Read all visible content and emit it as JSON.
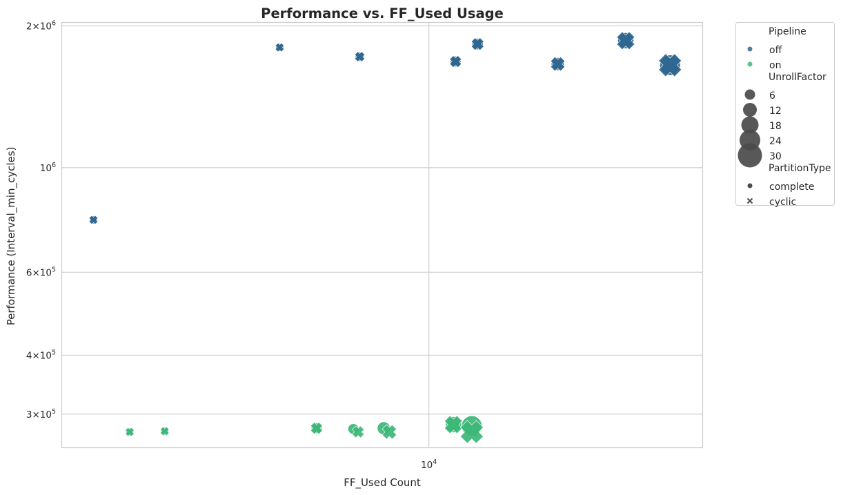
{
  "chart_data": {
    "type": "scatter",
    "title": "Performance vs. FF_Used Usage",
    "xlabel": "FF_Used Count",
    "ylabel": "Performance (Interval_min_cycles)",
    "xscale": "log",
    "yscale": "log",
    "xlim": [
      2100,
      32000
    ],
    "ylim": [
      255000,
      2030000
    ],
    "x_ticks": [
      {
        "value": 10000,
        "base": "10",
        "exp": "4"
      }
    ],
    "y_ticks": [
      {
        "value": 300000,
        "base": "3×10",
        "exp": "5"
      },
      {
        "value": 400000,
        "base": "4×10",
        "exp": "5"
      },
      {
        "value": 600000,
        "base": "6×10",
        "exp": "5"
      },
      {
        "value": 1000000,
        "base": "10",
        "exp": "6"
      },
      {
        "value": 2000000,
        "base": "2×10",
        "exp": "6"
      }
    ],
    "grid": true,
    "legend_position": "outside-right",
    "colors": {
      "off": "#2f6791",
      "on": "#3cb878"
    },
    "legend": {
      "hue_title": "Pipeline",
      "hue": [
        {
          "label": "off",
          "color": "#2f6791"
        },
        {
          "label": "on",
          "color": "#3cb878"
        }
      ],
      "size_title": "UnrollFactor",
      "sizes": [
        "6",
        "12",
        "18",
        "24",
        "30"
      ],
      "style_title": "PartitionType",
      "styles": [
        {
          "label": "complete",
          "marker": "circle"
        },
        {
          "label": "cyclic",
          "marker": "x"
        }
      ]
    },
    "series": [
      {
        "name": "off",
        "points": [
          {
            "x": 2400,
            "y": 775000,
            "unroll": 1,
            "partition": "complete"
          },
          {
            "x": 2400,
            "y": 775000,
            "unroll": 1,
            "partition": "cyclic"
          },
          {
            "x": 5300,
            "y": 1800000,
            "unroll": 1,
            "partition": "complete"
          },
          {
            "x": 5300,
            "y": 1800000,
            "unroll": 1,
            "partition": "cyclic"
          },
          {
            "x": 7450,
            "y": 1720000,
            "unroll": 2,
            "partition": "complete"
          },
          {
            "x": 7450,
            "y": 1720000,
            "unroll": 2,
            "partition": "cyclic"
          },
          {
            "x": 11200,
            "y": 1680000,
            "unroll": 4,
            "partition": "complete"
          },
          {
            "x": 11200,
            "y": 1680000,
            "unroll": 4,
            "partition": "cyclic"
          },
          {
            "x": 12300,
            "y": 1830000,
            "unroll": 5,
            "partition": "complete"
          },
          {
            "x": 12300,
            "y": 1830000,
            "unroll": 5,
            "partition": "cyclic"
          },
          {
            "x": 17300,
            "y": 1660000,
            "unroll": 8,
            "partition": "complete"
          },
          {
            "x": 17300,
            "y": 1660000,
            "unroll": 8,
            "partition": "cyclic"
          },
          {
            "x": 23100,
            "y": 1860000,
            "unroll": 16,
            "partition": "complete"
          },
          {
            "x": 23100,
            "y": 1860000,
            "unroll": 16,
            "partition": "cyclic"
          },
          {
            "x": 27900,
            "y": 1650000,
            "unroll": 32,
            "partition": "complete"
          },
          {
            "x": 27900,
            "y": 1650000,
            "unroll": 32,
            "partition": "cyclic"
          }
        ]
      },
      {
        "name": "on",
        "points": [
          {
            "x": 2800,
            "y": 275000,
            "unroll": 1,
            "partition": "complete"
          },
          {
            "x": 2800,
            "y": 275000,
            "unroll": 1,
            "partition": "cyclic"
          },
          {
            "x": 3250,
            "y": 276000,
            "unroll": 1,
            "partition": "complete"
          },
          {
            "x": 3250,
            "y": 276000,
            "unroll": 1,
            "partition": "cyclic"
          },
          {
            "x": 6200,
            "y": 280000,
            "unroll": 4,
            "partition": "complete"
          },
          {
            "x": 6200,
            "y": 280000,
            "unroll": 4,
            "partition": "cyclic"
          },
          {
            "x": 7250,
            "y": 279000,
            "unroll": 4,
            "partition": "complete"
          },
          {
            "x": 7400,
            "y": 275000,
            "unroll": 4,
            "partition": "cyclic"
          },
          {
            "x": 8250,
            "y": 280000,
            "unroll": 8,
            "partition": "complete"
          },
          {
            "x": 8450,
            "y": 275000,
            "unroll": 8,
            "partition": "cyclic"
          },
          {
            "x": 11100,
            "y": 285000,
            "unroll": 16,
            "partition": "complete"
          },
          {
            "x": 11100,
            "y": 285000,
            "unroll": 16,
            "partition": "cyclic"
          },
          {
            "x": 12000,
            "y": 283000,
            "unroll": 32,
            "partition": "complete"
          },
          {
            "x": 12000,
            "y": 275000,
            "unroll": 32,
            "partition": "cyclic"
          }
        ]
      }
    ]
  }
}
